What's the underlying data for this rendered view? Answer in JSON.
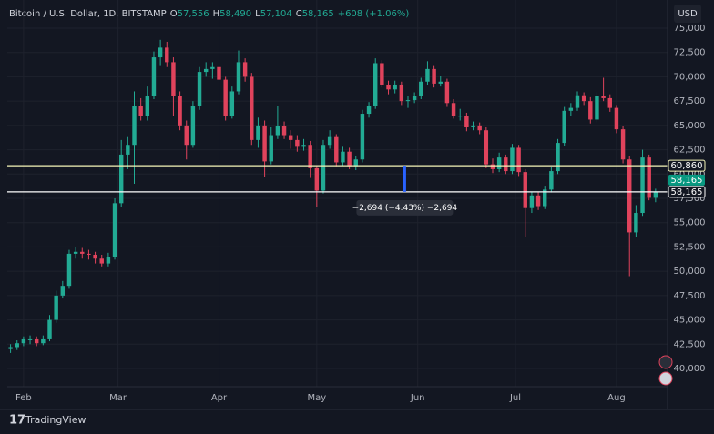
{
  "header": {
    "title": "Bitcoin / U.S. Dollar, 1D, BITSTAMP",
    "ohlc": [
      {
        "key": "O",
        "label": "57,556"
      },
      {
        "key": "H",
        "label": "58,490"
      },
      {
        "key": "L",
        "label": "57,104"
      },
      {
        "key": "C",
        "label": "58,165"
      }
    ],
    "change": "+608 (+1.06%)"
  },
  "currency_button": "USD",
  "brand": "TradingView",
  "chart_data": {
    "type": "candlestick",
    "up_color": "#22ab94",
    "down_color": "#e0435c",
    "grid": true,
    "xlim": [
      -5,
      196
    ],
    "ylim": [
      38128,
      77901
    ],
    "xticks": [
      {
        "value": 0,
        "label": "Feb"
      },
      {
        "value": 29,
        "label": "Mar"
      },
      {
        "value": 60,
        "label": "Apr"
      },
      {
        "value": 90,
        "label": "May"
      },
      {
        "value": 121,
        "label": "Jun"
      },
      {
        "value": 151,
        "label": "Jul"
      },
      {
        "value": 182,
        "label": "Aug"
      }
    ],
    "yticks": [
      {
        "value": 40000,
        "label": "40,000"
      },
      {
        "value": 42500,
        "label": "42,500"
      },
      {
        "value": 45000,
        "label": "45,000"
      },
      {
        "value": 47500,
        "label": "47,500"
      },
      {
        "value": 50000,
        "label": "50,000"
      },
      {
        "value": 52500,
        "label": "52,500"
      },
      {
        "value": 55000,
        "label": "55,000"
      },
      {
        "value": 57500,
        "label": "57,500"
      },
      {
        "value": 60000,
        "label": "60,000"
      },
      {
        "value": 62500,
        "label": "62,500"
      },
      {
        "value": 65000,
        "label": "65,000"
      },
      {
        "value": 67500,
        "label": "67,500"
      },
      {
        "value": 70000,
        "label": "70,000"
      },
      {
        "value": 72500,
        "label": "72,500"
      },
      {
        "value": 75000,
        "label": "75,000"
      }
    ],
    "x": [
      -4,
      -2,
      0,
      2,
      4,
      6,
      8,
      10,
      12,
      14,
      16,
      18,
      20,
      22,
      24,
      26,
      28,
      30,
      32,
      34,
      36,
      38,
      40,
      42,
      44,
      46,
      48,
      50,
      52,
      54,
      56,
      58,
      60,
      62,
      64,
      66,
      68,
      70,
      72,
      74,
      76,
      78,
      80,
      82,
      84,
      86,
      88,
      90,
      92,
      94,
      96,
      98,
      100,
      102,
      104,
      106,
      108,
      110,
      112,
      114,
      116,
      118,
      120,
      122,
      124,
      126,
      128,
      130,
      132,
      134,
      136,
      138,
      140,
      142,
      144,
      146,
      148,
      150,
      152,
      154,
      156,
      158,
      160,
      162,
      164,
      166,
      168,
      170,
      172,
      174,
      176,
      178,
      180,
      182,
      184,
      186,
      188,
      190,
      192,
      194
    ],
    "ohlc": [
      [
        42000,
        42500,
        41600,
        42200
      ],
      [
        42200,
        42900,
        41900,
        42600
      ],
      [
        42600,
        43300,
        42300,
        43000
      ],
      [
        43000,
        43400,
        42500,
        43000
      ],
      [
        43000,
        43300,
        42300,
        42600
      ],
      [
        42600,
        43400,
        42400,
        43000
      ],
      [
        43000,
        45500,
        42800,
        45000
      ],
      [
        45000,
        48000,
        44700,
        47500
      ],
      [
        47500,
        49000,
        47200,
        48500
      ],
      [
        48500,
        52200,
        48200,
        51800
      ],
      [
        51800,
        52500,
        51300,
        52000
      ],
      [
        52000,
        52400,
        51300,
        51800
      ],
      [
        51800,
        52200,
        51200,
        51700
      ],
      [
        51700,
        52000,
        50800,
        51300
      ],
      [
        51300,
        51700,
        50500,
        50800
      ],
      [
        50800,
        51900,
        50500,
        51500
      ],
      [
        51500,
        57500,
        51200,
        57000
      ],
      [
        57000,
        63500,
        56600,
        62000
      ],
      [
        62000,
        63800,
        60500,
        63000
      ],
      [
        63000,
        68500,
        59000,
        67000
      ],
      [
        67000,
        67800,
        65500,
        66000
      ],
      [
        66000,
        69000,
        65500,
        68000
      ],
      [
        68000,
        72600,
        67700,
        72000
      ],
      [
        72000,
        73800,
        71200,
        73000
      ],
      [
        73000,
        73600,
        71000,
        71500
      ],
      [
        71500,
        72000,
        66000,
        68000
      ],
      [
        68000,
        68500,
        64500,
        65000
      ],
      [
        65000,
        65500,
        61500,
        63000
      ],
      [
        63000,
        67500,
        62700,
        67000
      ],
      [
        67000,
        71000,
        66600,
        70500
      ],
      [
        70500,
        71500,
        70000,
        70800
      ],
      [
        70800,
        71500,
        69800,
        71000
      ],
      [
        71000,
        71200,
        69000,
        69700
      ],
      [
        69700,
        70000,
        65500,
        66000
      ],
      [
        66000,
        69000,
        65700,
        68500
      ],
      [
        68500,
        72700,
        68200,
        71500
      ],
      [
        71500,
        71900,
        69500,
        70000
      ],
      [
        70000,
        70400,
        63000,
        63500
      ],
      [
        63500,
        65800,
        62700,
        65000
      ],
      [
        65000,
        65500,
        59700,
        61300
      ],
      [
        61300,
        64800,
        61000,
        64000
      ],
      [
        64000,
        67000,
        63600,
        64900
      ],
      [
        64900,
        65400,
        63600,
        64000
      ],
      [
        64000,
        64500,
        62600,
        63500
      ],
      [
        63500,
        64000,
        62300,
        62800
      ],
      [
        62800,
        63600,
        62400,
        63000
      ],
      [
        63000,
        63400,
        59600,
        60600
      ],
      [
        60600,
        60900,
        56600,
        58300
      ],
      [
        58300,
        63500,
        58000,
        63000
      ],
      [
        63000,
        64500,
        62600,
        63800
      ],
      [
        63800,
        64100,
        60800,
        61200
      ],
      [
        61200,
        62800,
        60900,
        62300
      ],
      [
        62300,
        62700,
        60500,
        60800
      ],
      [
        60800,
        61900,
        60400,
        61500
      ],
      [
        61500,
        66600,
        61200,
        66200
      ],
      [
        66200,
        67400,
        65800,
        67000
      ],
      [
        67000,
        71900,
        66700,
        71400
      ],
      [
        71400,
        71700,
        68900,
        69200
      ],
      [
        69200,
        69600,
        68200,
        68700
      ],
      [
        68700,
        69600,
        68300,
        69200
      ],
      [
        69200,
        69500,
        67100,
        67500
      ],
      [
        67500,
        68000,
        66800,
        67600
      ],
      [
        67600,
        68400,
        67300,
        68000
      ],
      [
        68000,
        69900,
        67700,
        69500
      ],
      [
        69500,
        71600,
        69200,
        70800
      ],
      [
        70800,
        71200,
        68900,
        69300
      ],
      [
        69300,
        70100,
        69000,
        69500
      ],
      [
        69500,
        69800,
        66900,
        67300
      ],
      [
        67300,
        67700,
        65700,
        66000
      ],
      [
        66000,
        66700,
        65500,
        66000
      ],
      [
        66000,
        66300,
        64400,
        64800
      ],
      [
        64800,
        65400,
        64500,
        65000
      ],
      [
        65000,
        65300,
        64100,
        64500
      ],
      [
        64500,
        64800,
        60600,
        61000
      ],
      [
        61000,
        61600,
        60100,
        60500
      ],
      [
        60500,
        62200,
        60200,
        61700
      ],
      [
        61700,
        62000,
        60000,
        60300
      ],
      [
        60300,
        63100,
        60000,
        62700
      ],
      [
        62700,
        63000,
        59800,
        60200
      ],
      [
        60200,
        60500,
        53500,
        56500
      ],
      [
        56500,
        58200,
        56000,
        57800
      ],
      [
        57800,
        58200,
        56300,
        56700
      ],
      [
        56700,
        58800,
        56400,
        58400
      ],
      [
        58400,
        60700,
        58100,
        60300
      ],
      [
        60300,
        63600,
        60000,
        63200
      ],
      [
        63200,
        66900,
        62900,
        66500
      ],
      [
        66500,
        67300,
        66000,
        66800
      ],
      [
        66800,
        68500,
        66500,
        68100
      ],
      [
        68100,
        68400,
        67100,
        67500
      ],
      [
        67500,
        67900,
        65200,
        65600
      ],
      [
        65600,
        68400,
        65300,
        68000
      ],
      [
        68000,
        69900,
        67500,
        67800
      ],
      [
        67800,
        68200,
        66400,
        66800
      ],
      [
        66800,
        67100,
        64200,
        64600
      ],
      [
        64600,
        64900,
        61100,
        61500
      ],
      [
        61500,
        61800,
        49500,
        54000
      ],
      [
        54000,
        56800,
        53500,
        56000
      ],
      [
        56000,
        62500,
        55700,
        61700
      ],
      [
        61700,
        62000,
        57300,
        57556
      ],
      [
        57556,
        58490,
        57104,
        58165
      ]
    ],
    "price_lines": [
      {
        "value": 60860,
        "label": "60,860",
        "color": "#f5f5b8"
      },
      {
        "value": 58165,
        "label": "58,165",
        "color": "#ffffff"
      }
    ],
    "last_price": {
      "value": 58165,
      "label": "58,165",
      "color": "#089981"
    },
    "measure": {
      "x": 117,
      "from": 60860,
      "to": 58165,
      "label": "−2,694 (−4.43%) −2,694",
      "color": "#2962ff"
    }
  }
}
